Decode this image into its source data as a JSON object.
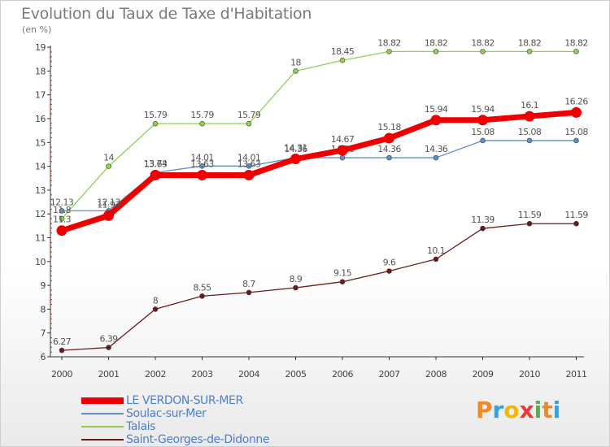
{
  "title": "Evolution du Taux de Taxe d'Habitation",
  "unit": "(en %)",
  "brand": {
    "letters": [
      "P",
      "r",
      "o",
      "x",
      "i",
      "t",
      "i"
    ],
    "colors": [
      "#f08a24",
      "#3aa0dc",
      "#f0b800",
      "#e83a3a",
      "#4db24a",
      "#f08a24",
      "#3aa0dc"
    ]
  },
  "chart_data": {
    "type": "line",
    "title": "Evolution du Taux de Taxe d'Habitation",
    "ylabel": "(en %)",
    "xlabel": "",
    "x": [
      "2000",
      "2001",
      "2002",
      "2003",
      "2004",
      "2005",
      "2006",
      "2007",
      "2008",
      "2009",
      "2010",
      "2011"
    ],
    "ylim": [
      6,
      19
    ],
    "yticks": [
      "6",
      "7",
      "8",
      "9",
      "10",
      "11",
      "12",
      "13",
      "14",
      "15",
      "16",
      "17",
      "18",
      "19"
    ],
    "grid": false,
    "legend": "bottom-left",
    "series": [
      {
        "name": "Saint-Georges-de-Didonne",
        "color": "#6b1a1a",
        "values": [
          6.27,
          6.39,
          8,
          8.55,
          8.7,
          8.9,
          9.15,
          9.6,
          10.1,
          11.39,
          11.59,
          11.59
        ],
        "labels": [
          "6.27",
          "6.39",
          "8",
          "8.55",
          "8.7",
          "8.9",
          "9.15",
          "9.6",
          "10.1",
          "11.39",
          "11.59",
          "11.59"
        ]
      },
      {
        "name": "Talais",
        "color": "#8fd14f",
        "values": [
          11.8,
          14,
          15.79,
          15.79,
          15.79,
          18,
          18.45,
          18.82,
          18.82,
          18.82,
          18.82,
          18.82
        ],
        "labels": [
          "11.8",
          "14",
          "15.79",
          "15.79",
          "15.79",
          "18",
          "18.45",
          "18.82",
          "18.82",
          "18.82",
          "18.82",
          "18.82"
        ]
      },
      {
        "name": "Soulac-sur-Mer",
        "color": "#5b8fc6",
        "values": [
          12.13,
          12.13,
          13.74,
          14.01,
          14.01,
          14.36,
          14.36,
          14.36,
          14.36,
          15.08,
          15.08,
          15.08
        ],
        "labels": [
          "12.13",
          "12.13",
          "13.74",
          "14.01",
          "14.01",
          "14.36",
          "14.36",
          "14.36",
          "14.36",
          "15.08",
          "15.08",
          "15.08"
        ]
      },
      {
        "name": "LE VERDON-SUR-MER",
        "color": "#ee0000",
        "values": [
          11.3,
          11.93,
          13.63,
          13.63,
          13.63,
          14.31,
          14.67,
          15.18,
          15.94,
          15.94,
          16.1,
          16.26
        ],
        "labels": [
          "11.3",
          "11.93",
          "13.63",
          "13.63",
          "13.63",
          "14.31",
          "14.67",
          "15.18",
          "15.94",
          "15.94",
          "16.1",
          "16.26"
        ]
      }
    ]
  },
  "legend": {
    "items": [
      {
        "label": "LE VERDON-SUR-MER",
        "color": "#ee0000",
        "weight": 7
      },
      {
        "label": "Soulac-sur-Mer",
        "color": "#5b8fc6",
        "weight": 2
      },
      {
        "label": "Talais",
        "color": "#8fd14f",
        "weight": 2
      },
      {
        "label": "Saint-Georges-de-Didonne",
        "color": "#6b1a1a",
        "weight": 2
      }
    ]
  }
}
